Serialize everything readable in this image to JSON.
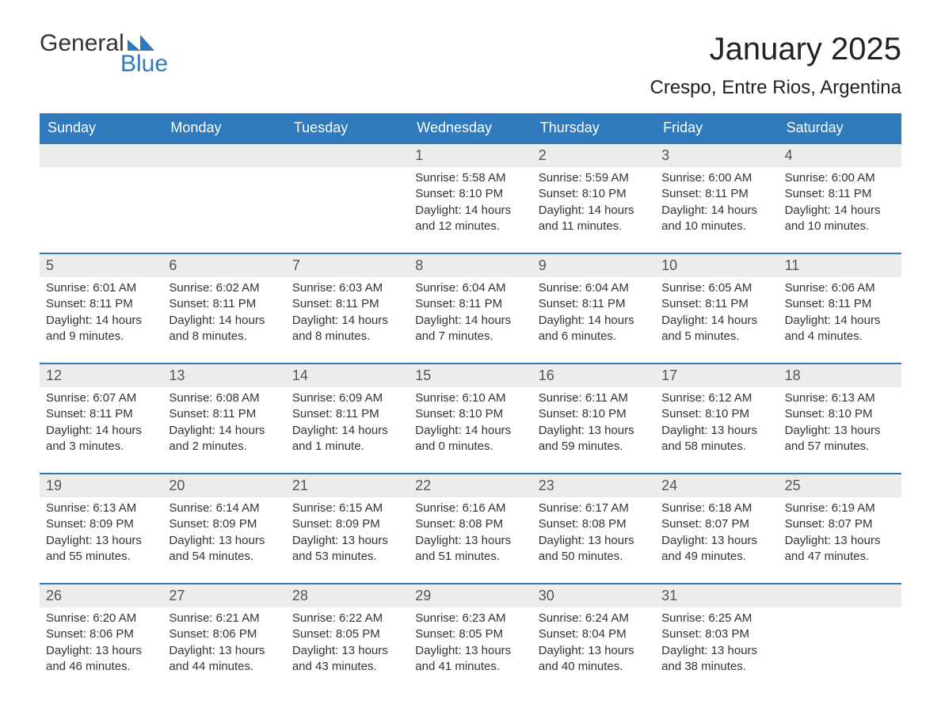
{
  "logo": {
    "word1": "General",
    "word2": "Blue",
    "brand_color": "#2f79bd"
  },
  "title": "January 2025",
  "location": "Crespo, Entre Rios, Argentina",
  "colors": {
    "header_bg": "#2f79bd",
    "header_text": "#ffffff",
    "daynum_bg": "#ececec",
    "daynum_text": "#555555",
    "body_text": "#333333",
    "divider": "#2f79bd",
    "page_bg": "#ffffff"
  },
  "typography": {
    "title_fontsize": 40,
    "location_fontsize": 24,
    "header_fontsize": 18,
    "daynum_fontsize": 18,
    "cell_fontsize": 15
  },
  "weekdays": [
    "Sunday",
    "Monday",
    "Tuesday",
    "Wednesday",
    "Thursday",
    "Friday",
    "Saturday"
  ],
  "weeks": [
    [
      {
        "n": "",
        "sr": "",
        "ss": "",
        "dl": ""
      },
      {
        "n": "",
        "sr": "",
        "ss": "",
        "dl": ""
      },
      {
        "n": "",
        "sr": "",
        "ss": "",
        "dl": ""
      },
      {
        "n": "1",
        "sr": "Sunrise: 5:58 AM",
        "ss": "Sunset: 8:10 PM",
        "dl": "Daylight: 14 hours and 12 minutes."
      },
      {
        "n": "2",
        "sr": "Sunrise: 5:59 AM",
        "ss": "Sunset: 8:10 PM",
        "dl": "Daylight: 14 hours and 11 minutes."
      },
      {
        "n": "3",
        "sr": "Sunrise: 6:00 AM",
        "ss": "Sunset: 8:11 PM",
        "dl": "Daylight: 14 hours and 10 minutes."
      },
      {
        "n": "4",
        "sr": "Sunrise: 6:00 AM",
        "ss": "Sunset: 8:11 PM",
        "dl": "Daylight: 14 hours and 10 minutes."
      }
    ],
    [
      {
        "n": "5",
        "sr": "Sunrise: 6:01 AM",
        "ss": "Sunset: 8:11 PM",
        "dl": "Daylight: 14 hours and 9 minutes."
      },
      {
        "n": "6",
        "sr": "Sunrise: 6:02 AM",
        "ss": "Sunset: 8:11 PM",
        "dl": "Daylight: 14 hours and 8 minutes."
      },
      {
        "n": "7",
        "sr": "Sunrise: 6:03 AM",
        "ss": "Sunset: 8:11 PM",
        "dl": "Daylight: 14 hours and 8 minutes."
      },
      {
        "n": "8",
        "sr": "Sunrise: 6:04 AM",
        "ss": "Sunset: 8:11 PM",
        "dl": "Daylight: 14 hours and 7 minutes."
      },
      {
        "n": "9",
        "sr": "Sunrise: 6:04 AM",
        "ss": "Sunset: 8:11 PM",
        "dl": "Daylight: 14 hours and 6 minutes."
      },
      {
        "n": "10",
        "sr": "Sunrise: 6:05 AM",
        "ss": "Sunset: 8:11 PM",
        "dl": "Daylight: 14 hours and 5 minutes."
      },
      {
        "n": "11",
        "sr": "Sunrise: 6:06 AM",
        "ss": "Sunset: 8:11 PM",
        "dl": "Daylight: 14 hours and 4 minutes."
      }
    ],
    [
      {
        "n": "12",
        "sr": "Sunrise: 6:07 AM",
        "ss": "Sunset: 8:11 PM",
        "dl": "Daylight: 14 hours and 3 minutes."
      },
      {
        "n": "13",
        "sr": "Sunrise: 6:08 AM",
        "ss": "Sunset: 8:11 PM",
        "dl": "Daylight: 14 hours and 2 minutes."
      },
      {
        "n": "14",
        "sr": "Sunrise: 6:09 AM",
        "ss": "Sunset: 8:11 PM",
        "dl": "Daylight: 14 hours and 1 minute."
      },
      {
        "n": "15",
        "sr": "Sunrise: 6:10 AM",
        "ss": "Sunset: 8:10 PM",
        "dl": "Daylight: 14 hours and 0 minutes."
      },
      {
        "n": "16",
        "sr": "Sunrise: 6:11 AM",
        "ss": "Sunset: 8:10 PM",
        "dl": "Daylight: 13 hours and 59 minutes."
      },
      {
        "n": "17",
        "sr": "Sunrise: 6:12 AM",
        "ss": "Sunset: 8:10 PM",
        "dl": "Daylight: 13 hours and 58 minutes."
      },
      {
        "n": "18",
        "sr": "Sunrise: 6:13 AM",
        "ss": "Sunset: 8:10 PM",
        "dl": "Daylight: 13 hours and 57 minutes."
      }
    ],
    [
      {
        "n": "19",
        "sr": "Sunrise: 6:13 AM",
        "ss": "Sunset: 8:09 PM",
        "dl": "Daylight: 13 hours and 55 minutes."
      },
      {
        "n": "20",
        "sr": "Sunrise: 6:14 AM",
        "ss": "Sunset: 8:09 PM",
        "dl": "Daylight: 13 hours and 54 minutes."
      },
      {
        "n": "21",
        "sr": "Sunrise: 6:15 AM",
        "ss": "Sunset: 8:09 PM",
        "dl": "Daylight: 13 hours and 53 minutes."
      },
      {
        "n": "22",
        "sr": "Sunrise: 6:16 AM",
        "ss": "Sunset: 8:08 PM",
        "dl": "Daylight: 13 hours and 51 minutes."
      },
      {
        "n": "23",
        "sr": "Sunrise: 6:17 AM",
        "ss": "Sunset: 8:08 PM",
        "dl": "Daylight: 13 hours and 50 minutes."
      },
      {
        "n": "24",
        "sr": "Sunrise: 6:18 AM",
        "ss": "Sunset: 8:07 PM",
        "dl": "Daylight: 13 hours and 49 minutes."
      },
      {
        "n": "25",
        "sr": "Sunrise: 6:19 AM",
        "ss": "Sunset: 8:07 PM",
        "dl": "Daylight: 13 hours and 47 minutes."
      }
    ],
    [
      {
        "n": "26",
        "sr": "Sunrise: 6:20 AM",
        "ss": "Sunset: 8:06 PM",
        "dl": "Daylight: 13 hours and 46 minutes."
      },
      {
        "n": "27",
        "sr": "Sunrise: 6:21 AM",
        "ss": "Sunset: 8:06 PM",
        "dl": "Daylight: 13 hours and 44 minutes."
      },
      {
        "n": "28",
        "sr": "Sunrise: 6:22 AM",
        "ss": "Sunset: 8:05 PM",
        "dl": "Daylight: 13 hours and 43 minutes."
      },
      {
        "n": "29",
        "sr": "Sunrise: 6:23 AM",
        "ss": "Sunset: 8:05 PM",
        "dl": "Daylight: 13 hours and 41 minutes."
      },
      {
        "n": "30",
        "sr": "Sunrise: 6:24 AM",
        "ss": "Sunset: 8:04 PM",
        "dl": "Daylight: 13 hours and 40 minutes."
      },
      {
        "n": "31",
        "sr": "Sunrise: 6:25 AM",
        "ss": "Sunset: 8:03 PM",
        "dl": "Daylight: 13 hours and 38 minutes."
      },
      {
        "n": "",
        "sr": "",
        "ss": "",
        "dl": ""
      }
    ]
  ]
}
